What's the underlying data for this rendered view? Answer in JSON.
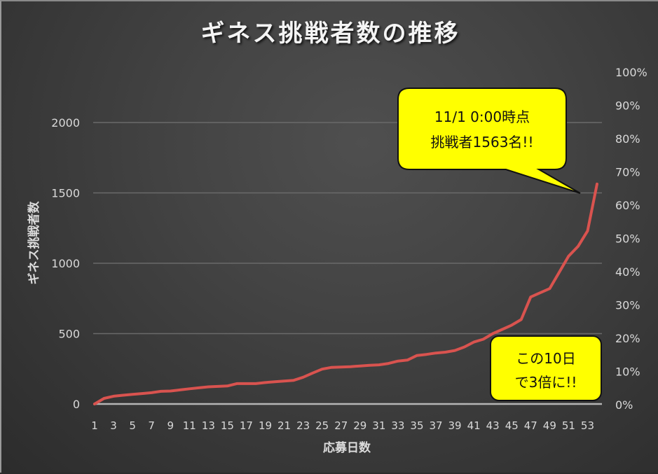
{
  "chart_data": {
    "type": "line",
    "title": "ギネス挑戦者数の推移",
    "xlabel": "応募日数",
    "ylabel": "ギネス挑戦者数",
    "ylim": [
      0,
      2000
    ],
    "y2lim": [
      0,
      1
    ],
    "grid": true,
    "legend": "none",
    "y_ticks": [
      "0",
      "500",
      "1000",
      "1500",
      "2000"
    ],
    "y2_ticks": [
      "0%",
      "10%",
      "20%",
      "30%",
      "40%",
      "50%",
      "60%",
      "70%",
      "80%",
      "90%",
      "100%"
    ],
    "x_tick_labels": [
      "1",
      "3",
      "5",
      "7",
      "9",
      "11",
      "13",
      "15",
      "17",
      "19",
      "21",
      "23",
      "25",
      "27",
      "29",
      "31",
      "33",
      "35",
      "37",
      "39",
      "41",
      "43",
      "45",
      "47",
      "49",
      "51",
      "53"
    ],
    "x": [
      1,
      2,
      3,
      4,
      5,
      6,
      7,
      8,
      9,
      10,
      11,
      12,
      13,
      14,
      15,
      16,
      17,
      18,
      19,
      20,
      21,
      22,
      23,
      24,
      25,
      26,
      27,
      28,
      29,
      30,
      31,
      32,
      33,
      34,
      35,
      36,
      37,
      38,
      39,
      40,
      41,
      42,
      43,
      44,
      45,
      46,
      47,
      48,
      49,
      50,
      51,
      52,
      53,
      54
    ],
    "series": [
      {
        "name": "ギネス挑戦者数",
        "color": "#d9534f",
        "values": [
          0,
          40,
          55,
          62,
          68,
          74,
          80,
          90,
          92,
          100,
          108,
          115,
          122,
          125,
          128,
          145,
          145,
          145,
          152,
          158,
          163,
          168,
          190,
          220,
          248,
          260,
          262,
          265,
          270,
          275,
          278,
          288,
          305,
          312,
          345,
          352,
          362,
          368,
          380,
          405,
          440,
          460,
          500,
          530,
          560,
          600,
          760,
          790,
          820,
          935,
          1050,
          1120,
          1230,
          1563
        ]
      }
    ],
    "annotations": [
      {
        "line1": "11/1 0:00時点",
        "line2": "挑戦者1563名!!"
      },
      {
        "line1": "この10日",
        "line2": "で3倍に!!"
      }
    ]
  },
  "colors": {
    "line": "#d9534f",
    "callout_fill": "#ffff00",
    "callout_stroke": "#111111",
    "grid": "#6a6a6a",
    "axis": "#b5b5b5"
  }
}
